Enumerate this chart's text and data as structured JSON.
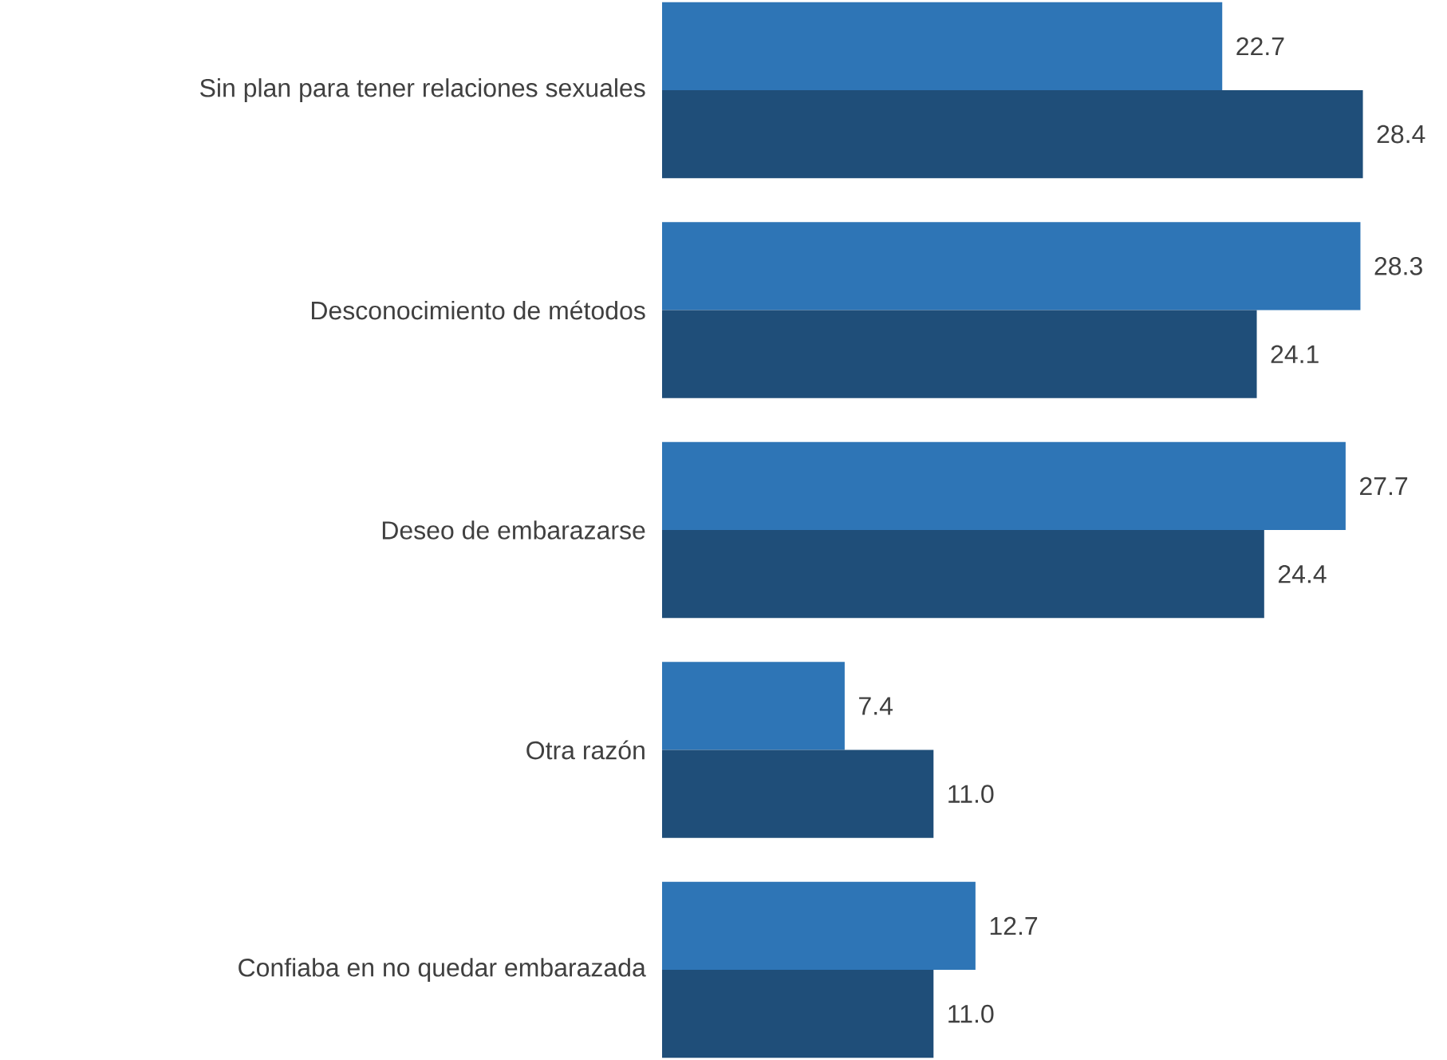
{
  "chart_data": {
    "type": "bar",
    "orientation": "horizontal",
    "categories": [
      "Sin plan para tener relaciones sexuales",
      "Desconocimiento de métodos",
      "Deseo de embarazarse",
      "Otra razón",
      "Confiaba en no quedar embarazada"
    ],
    "series": [
      {
        "color": "#2e75b6",
        "values": [
          22.7,
          28.3,
          27.7,
          7.4,
          12.7
        ],
        "value_labels": [
          "22.7",
          "28.3",
          "27.7",
          "7.4",
          "12.7"
        ]
      },
      {
        "color": "#1f4e79",
        "values": [
          28.4,
          24.1,
          24.4,
          11.0,
          11.0
        ],
        "value_labels": [
          "28.4",
          "24.1",
          "24.4",
          "11.0",
          "11.0"
        ]
      }
    ]
  }
}
